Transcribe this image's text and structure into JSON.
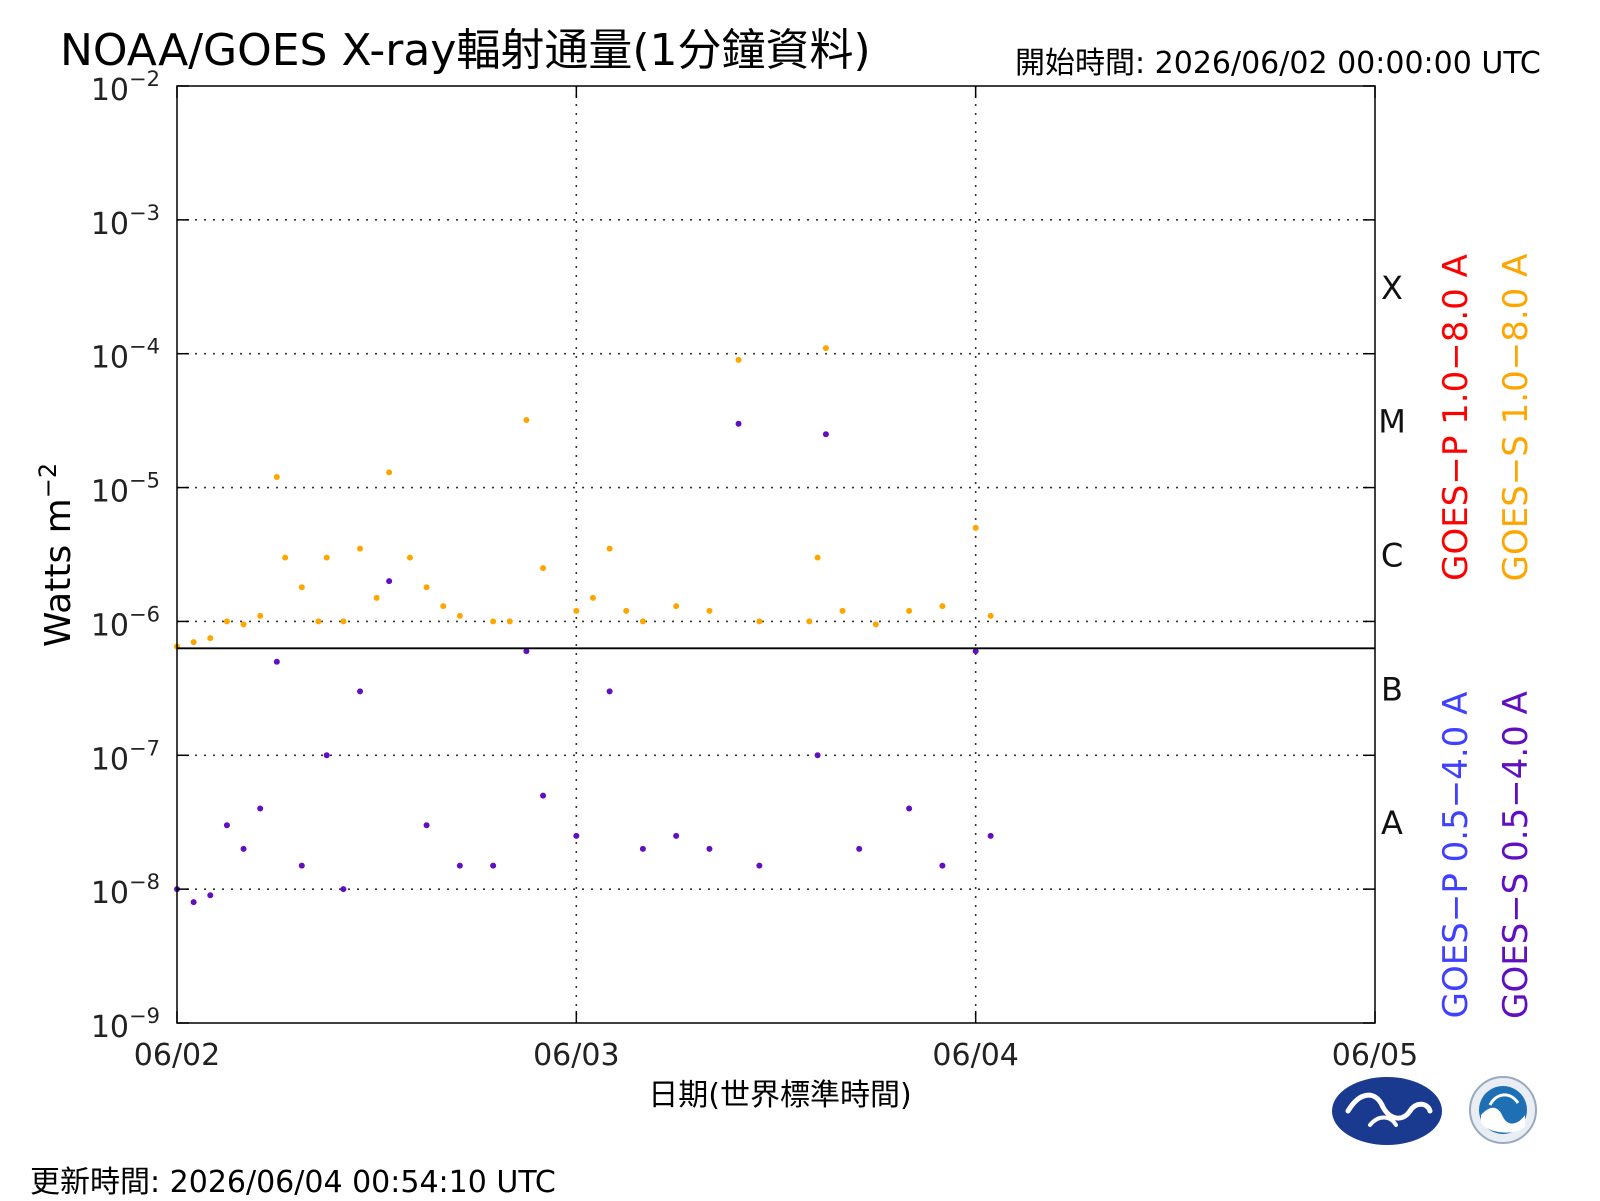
{
  "title": "NOAA/GOES X-ray輻射通量(1分鐘資料)",
  "start_time": "開始時間:  2026/06/02 00:00:00 UTC",
  "update_time": "更新時間: 2026/06/04 00:54:10 UTC",
  "chart_data": {
    "type": "scatter",
    "title": "NOAA/GOES X-ray輻射通量(1分鐘資料)",
    "xlabel": "日期(世界標準時間)",
    "ylabel": "Watts m",
    "ylabel_exponent": "−2",
    "yscale": "log",
    "ylim": [
      1e-09,
      0.01
    ],
    "xlim": [
      "06/02",
      "06/05"
    ],
    "x_ticks": [
      "06/02",
      "06/03",
      "06/04",
      "06/05"
    ],
    "y_ticks": [
      {
        "base": "10",
        "exp": "−2",
        "value": 0.01
      },
      {
        "base": "10",
        "exp": "−3",
        "value": 0.001
      },
      {
        "base": "10",
        "exp": "−4",
        "value": 0.0001
      },
      {
        "base": "10",
        "exp": "−5",
        "value": 1e-05
      },
      {
        "base": "10",
        "exp": "−6",
        "value": 1e-06
      },
      {
        "base": "10",
        "exp": "−7",
        "value": 1e-07
      },
      {
        "base": "10",
        "exp": "−8",
        "value": 1e-08
      },
      {
        "base": "10",
        "exp": "−9",
        "value": 1e-09
      }
    ],
    "flare_classes": [
      {
        "label": "X",
        "lower": 0.0001,
        "upper": 0.001
      },
      {
        "label": "M",
        "lower": 1e-05,
        "upper": 0.0001
      },
      {
        "label": "C",
        "lower": 1e-06,
        "upper": 1e-05
      },
      {
        "label": "B",
        "lower": 1e-07,
        "upper": 1e-06
      },
      {
        "label": "A",
        "lower": 1e-08,
        "upper": 1e-07
      }
    ],
    "grid": true,
    "separator_line": 6.3e-07,
    "legend": [
      {
        "name": "GOES−P 1.0−8.0 A",
        "color": "#ff0000",
        "group": "long"
      },
      {
        "name": "GOES−S 1.0−8.0 A",
        "color": "#ffa500",
        "group": "long"
      },
      {
        "name": "GOES−P 0.5−4.0 A",
        "color": "#4040ff",
        "group": "short"
      },
      {
        "name": "GOES−S 0.5−4.0 A",
        "color": "#6010c0",
        "group": "short"
      }
    ],
    "legend_position": "right",
    "series": [
      {
        "name": "GOES−S 1.0−8.0 A",
        "color": "#ffa500",
        "points": [
          [
            "06/02 00:00",
            6.5e-07
          ],
          [
            "06/02 01:00",
            7e-07
          ],
          [
            "06/02 02:00",
            7.5e-07
          ],
          [
            "06/02 03:00",
            1e-06
          ],
          [
            "06/02 04:00",
            9.5e-07
          ],
          [
            "06/02 05:00",
            1.1e-06
          ],
          [
            "06/02 06:00",
            1.2e-05
          ],
          [
            "06/02 06:30",
            3e-06
          ],
          [
            "06/02 07:30",
            1.8e-06
          ],
          [
            "06/02 08:30",
            1e-06
          ],
          [
            "06/02 09:00",
            3e-06
          ],
          [
            "06/02 10:00",
            1e-06
          ],
          [
            "06/02 11:00",
            3.5e-06
          ],
          [
            "06/02 12:00",
            1.5e-06
          ],
          [
            "06/02 12:45",
            1.3e-05
          ],
          [
            "06/02 14:00",
            3e-06
          ],
          [
            "06/02 15:00",
            1.8e-06
          ],
          [
            "06/02 16:00",
            1.3e-06
          ],
          [
            "06/02 17:00",
            1.1e-06
          ],
          [
            "06/02 19:00",
            1e-06
          ],
          [
            "06/02 20:00",
            1e-06
          ],
          [
            "06/02 21:00",
            3.2e-05
          ],
          [
            "06/02 22:00",
            2.5e-06
          ],
          [
            "06/03 00:00",
            1.2e-06
          ],
          [
            "06/03 01:00",
            1.5e-06
          ],
          [
            "06/03 02:00",
            3.5e-06
          ],
          [
            "06/03 03:00",
            1.2e-06
          ],
          [
            "06/03 04:00",
            1e-06
          ],
          [
            "06/03 06:00",
            1.3e-06
          ],
          [
            "06/03 08:00",
            1.2e-06
          ],
          [
            "06/03 09:45",
            9e-05
          ],
          [
            "06/03 11:00",
            1e-06
          ],
          [
            "06/03 14:00",
            1e-06
          ],
          [
            "06/03 14:30",
            3e-06
          ],
          [
            "06/03 15:00",
            0.00011
          ],
          [
            "06/03 16:00",
            1.2e-06
          ],
          [
            "06/03 18:00",
            9.5e-07
          ],
          [
            "06/03 20:00",
            1.2e-06
          ],
          [
            "06/03 22:00",
            1.3e-06
          ],
          [
            "06/04 00:00",
            5e-06
          ],
          [
            "06/04 00:54",
            1.1e-06
          ]
        ]
      },
      {
        "name": "GOES−S 0.5−4.0 A",
        "color": "#6010c0",
        "points": [
          [
            "06/02 00:00",
            1e-08
          ],
          [
            "06/02 01:00",
            8e-09
          ],
          [
            "06/02 02:00",
            9e-09
          ],
          [
            "06/02 03:00",
            3e-08
          ],
          [
            "06/02 04:00",
            2e-08
          ],
          [
            "06/02 05:00",
            4e-08
          ],
          [
            "06/02 06:00",
            5e-07
          ],
          [
            "06/02 07:30",
            1.5e-08
          ],
          [
            "06/02 09:00",
            1e-07
          ],
          [
            "06/02 10:00",
            1e-08
          ],
          [
            "06/02 11:00",
            3e-07
          ],
          [
            "06/02 12:45",
            2e-06
          ],
          [
            "06/02 15:00",
            3e-08
          ],
          [
            "06/02 17:00",
            1.5e-08
          ],
          [
            "06/02 19:00",
            1.5e-08
          ],
          [
            "06/02 21:00",
            6e-07
          ],
          [
            "06/02 22:00",
            5e-08
          ],
          [
            "06/03 00:00",
            2.5e-08
          ],
          [
            "06/03 02:00",
            3e-07
          ],
          [
            "06/03 04:00",
            2e-08
          ],
          [
            "06/03 06:00",
            2.5e-08
          ],
          [
            "06/03 08:00",
            2e-08
          ],
          [
            "06/03 09:45",
            3e-05
          ],
          [
            "06/03 11:00",
            1.5e-08
          ],
          [
            "06/03 14:30",
            1e-07
          ],
          [
            "06/03 15:00",
            2.5e-05
          ],
          [
            "06/03 17:00",
            2e-08
          ],
          [
            "06/03 20:00",
            4e-08
          ],
          [
            "06/03 22:00",
            1.5e-08
          ],
          [
            "06/04 00:00",
            6e-07
          ],
          [
            "06/04 00:54",
            2.5e-08
          ]
        ]
      }
    ]
  },
  "logos": [
    {
      "name": "cwa-logo",
      "color": "#1a3a8f"
    },
    {
      "name": "noaa-logo",
      "color": "#1f6fb5"
    }
  ]
}
